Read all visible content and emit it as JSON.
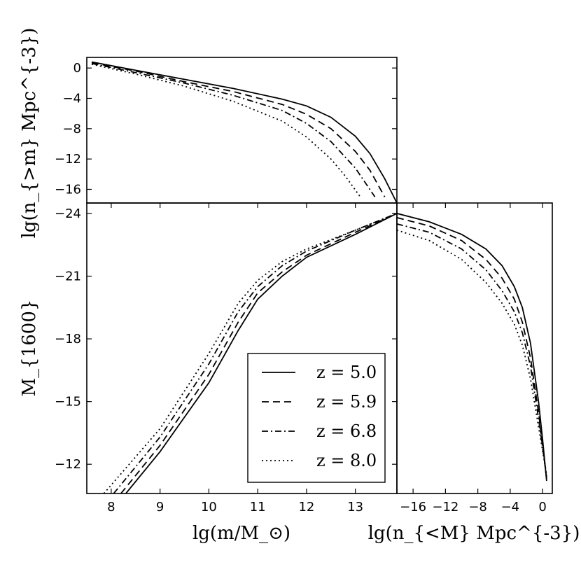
{
  "chart_data": [
    {
      "panel": "top",
      "type": "line",
      "ylabel": "lg(n_{>m} Mpc^{-3})",
      "xlim": [
        7.5,
        13.85
      ],
      "ylim": [
        -17.8,
        1.4
      ],
      "yticks": [
        0,
        -4,
        -8,
        -12,
        -16
      ],
      "ytick_labels": [
        "0",
        "−4",
        "−8",
        "−12",
        "−16"
      ],
      "series": [
        {
          "name": "z=5.0",
          "dash": "solid",
          "x": [
            7.6,
            8.5,
            9.5,
            10.5,
            11.5,
            12.0,
            12.5,
            13.0,
            13.3,
            13.6,
            13.85
          ],
          "y": [
            0.8,
            -0.3,
            -1.5,
            -2.7,
            -4.1,
            -5.0,
            -6.5,
            -9.0,
            -11.3,
            -14.6,
            -17.8
          ]
        },
        {
          "name": "z=5.9",
          "dash": "dashed",
          "x": [
            7.6,
            8.5,
            9.5,
            10.5,
            11.5,
            12.0,
            12.5,
            13.0,
            13.3,
            13.6
          ],
          "y": [
            0.7,
            -0.4,
            -1.8,
            -3.1,
            -4.8,
            -6.1,
            -8.0,
            -11.0,
            -13.5,
            -17.0
          ]
        },
        {
          "name": "z=6.8",
          "dash": "dashdot",
          "x": [
            7.6,
            8.5,
            9.5,
            10.5,
            11.5,
            12.0,
            12.5,
            13.0,
            13.4
          ],
          "y": [
            0.6,
            -0.6,
            -2.0,
            -3.6,
            -5.6,
            -7.3,
            -9.7,
            -13.2,
            -17.0
          ]
        },
        {
          "name": "z=8.0",
          "dash": "dotted",
          "x": [
            7.6,
            8.5,
            9.5,
            10.5,
            11.5,
            12.0,
            12.5,
            12.8,
            13.1
          ],
          "y": [
            0.5,
            -0.8,
            -2.4,
            -4.4,
            -7.0,
            -9.1,
            -12.0,
            -14.3,
            -17.0
          ]
        }
      ]
    },
    {
      "panel": "main",
      "type": "line",
      "xlabel": "lg(m/M_⊙)",
      "ylabel": "M_{1600}",
      "xlim": [
        7.5,
        13.85
      ],
      "ylim": [
        -10.6,
        -24.5
      ],
      "xticks": [
        8,
        9,
        10,
        11,
        12,
        13
      ],
      "xtick_labels": [
        "8",
        "9",
        "10",
        "11",
        "12",
        "13"
      ],
      "yticks": [
        -24,
        -21,
        -18,
        -15,
        -12
      ],
      "ytick_labels": [
        "−24",
        "−21",
        "−18",
        "−15",
        "−12"
      ],
      "series": [
        {
          "name": "z=5.0",
          "dash": "solid",
          "x": [
            8.3,
            9.0,
            10.0,
            10.6,
            11.0,
            11.5,
            12.0,
            13.0,
            13.85
          ],
          "y": [
            -10.6,
            -12.6,
            -15.9,
            -18.4,
            -19.9,
            -21.0,
            -21.9,
            -23.0,
            -24.0
          ]
        },
        {
          "name": "z=5.9",
          "dash": "dashed",
          "x": [
            8.2,
            9.0,
            10.0,
            10.6,
            11.0,
            11.5,
            12.0,
            13.0,
            13.85
          ],
          "y": [
            -10.6,
            -12.9,
            -16.3,
            -18.8,
            -20.2,
            -21.2,
            -22.0,
            -23.1,
            -24.0
          ]
        },
        {
          "name": "z=6.8",
          "dash": "dashdot",
          "x": [
            8.05,
            9.0,
            10.0,
            10.6,
            11.0,
            11.5,
            12.0,
            13.0,
            13.85
          ],
          "y": [
            -10.6,
            -13.3,
            -16.8,
            -19.3,
            -20.5,
            -21.5,
            -22.2,
            -23.2,
            -24.0
          ]
        },
        {
          "name": "z=8.0",
          "dash": "dotted",
          "x": [
            7.85,
            9.0,
            10.0,
            10.6,
            11.0,
            11.5,
            12.0,
            13.0,
            13.85
          ],
          "y": [
            -10.6,
            -13.7,
            -17.3,
            -19.7,
            -20.8,
            -21.7,
            -22.3,
            -23.2,
            -24.0
          ]
        }
      ],
      "legend": {
        "placement": "lower-right",
        "entries": [
          {
            "label": "z = 5.0",
            "dash": "solid"
          },
          {
            "label": "z = 5.9",
            "dash": "dashed"
          },
          {
            "label": "z = 6.8",
            "dash": "dashdot"
          },
          {
            "label": "z = 8.0",
            "dash": "dotted"
          }
        ]
      }
    },
    {
      "panel": "right",
      "type": "line",
      "xlabel": "lg(n_{<M} Mpc^{-3})",
      "xlim": [
        -18.0,
        1.2
      ],
      "ylim": [
        -10.6,
        -24.5
      ],
      "xticks": [
        -16,
        -12,
        -8,
        -4,
        0
      ],
      "xtick_labels": [
        "−16",
        "−12",
        "−8",
        "−4",
        "0"
      ],
      "series": [
        {
          "name": "z=5.0",
          "dash": "solid",
          "x": [
            -18.0,
            -14.0,
            -10.0,
            -7.0,
            -5.0,
            -3.5,
            -2.5,
            -1.5,
            -0.5,
            0.0,
            0.5
          ],
          "y": [
            -24.0,
            -23.6,
            -23.0,
            -22.3,
            -21.5,
            -20.5,
            -19.5,
            -17.8,
            -15.0,
            -13.2,
            -11.2
          ]
        },
        {
          "name": "z=5.9",
          "dash": "dashed",
          "x": [
            -18.0,
            -14.0,
            -10.0,
            -7.0,
            -5.0,
            -3.5,
            -2.5,
            -1.5,
            -0.5,
            0.5
          ],
          "y": [
            -23.8,
            -23.4,
            -22.7,
            -21.8,
            -20.9,
            -19.9,
            -18.8,
            -17.1,
            -14.5,
            -11.3
          ]
        },
        {
          "name": "z=6.8",
          "dash": "dashdot",
          "x": [
            -18.0,
            -14.0,
            -10.0,
            -7.0,
            -5.0,
            -3.5,
            -2.5,
            -1.5,
            -0.5,
            0.5
          ],
          "y": [
            -23.5,
            -23.1,
            -22.3,
            -21.3,
            -20.3,
            -19.3,
            -18.3,
            -16.7,
            -14.2,
            -11.4
          ]
        },
        {
          "name": "z=8.0",
          "dash": "dotted",
          "x": [
            -18.0,
            -14.0,
            -10.0,
            -7.0,
            -5.0,
            -3.5,
            -2.5,
            -1.5,
            -0.5,
            0.5
          ],
          "y": [
            -23.2,
            -22.7,
            -21.8,
            -20.7,
            -19.7,
            -18.7,
            -17.7,
            -16.1,
            -13.8,
            -11.5
          ]
        }
      ]
    }
  ]
}
